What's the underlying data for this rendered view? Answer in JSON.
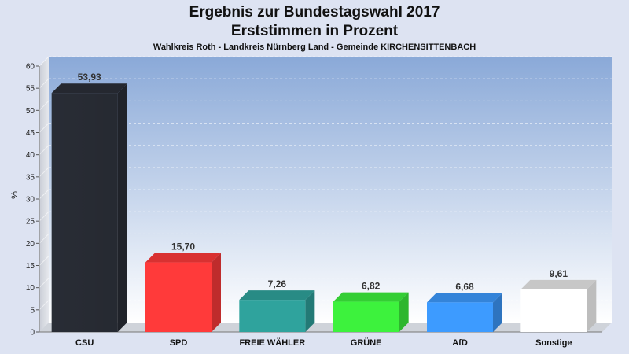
{
  "chart_data": {
    "type": "bar",
    "title": "Ergebnis zur Bundestagswahl 2017",
    "subtitle": "Erststimmen in Prozent",
    "caption": "Wahlkreis Roth - Landkreis Nürnberg Land - Gemeinde KIRCHENSITTENBACH",
    "ylabel": "%",
    "xlabel": "",
    "ylim": [
      0,
      60
    ],
    "yticks": [
      0,
      5,
      10,
      15,
      20,
      25,
      30,
      35,
      40,
      45,
      50,
      55,
      60
    ],
    "grid": true,
    "categories": [
      "CSU",
      "SPD",
      "FREIE WÄHLER",
      "GRÜNE",
      "AfD",
      "Sonstige"
    ],
    "values": [
      53.93,
      15.7,
      7.26,
      6.82,
      6.68,
      9.61
    ],
    "value_labels": [
      "53,93",
      "15,70",
      "7,26",
      "6,82",
      "6,68",
      "9,61"
    ],
    "colors": [
      "#2b2f38",
      "#ff3a3a",
      "#2fa39d",
      "#3df23d",
      "#3d9bff",
      "#ffffff"
    ]
  }
}
